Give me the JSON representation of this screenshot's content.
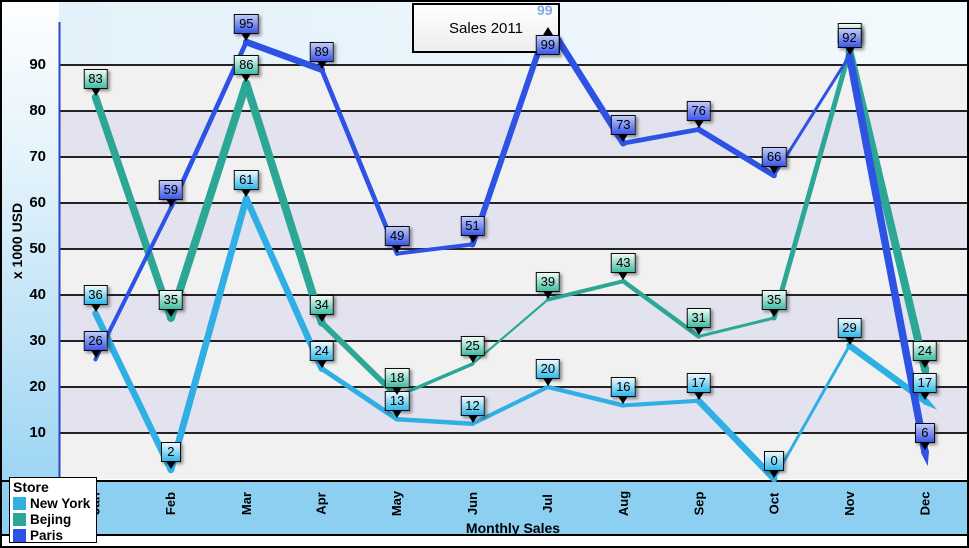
{
  "chart_data": {
    "type": "line",
    "title": "Sales 2011",
    "xlabel": "Monthly Sales",
    "ylabel": "x 1000 USD",
    "ylim": [
      0,
      103
    ],
    "grid": "horizontal-bands",
    "y_ticks": [
      "90",
      "80",
      "70",
      "60",
      "50",
      "40",
      "30",
      "20",
      "10"
    ],
    "categories": [
      "Jan",
      "Feb",
      "Mar",
      "Apr",
      "May",
      "Jun",
      "Jul",
      "Aug",
      "Sep",
      "Oct",
      "Nov",
      "Dec"
    ],
    "legend": {
      "title": "Store",
      "position": "bottom-left"
    },
    "series": [
      {
        "name": "New York",
        "color": "#2fafe4",
        "values": [
          36,
          2,
          61,
          24,
          13,
          12,
          20,
          16,
          17,
          0,
          29,
          17
        ],
        "segment_widths": [
          6.5,
          6.8,
          6.5,
          5,
          4.5,
          4,
          4.5,
          4,
          6.5,
          3,
          6.5
        ]
      },
      {
        "name": "Bejing",
        "color": "#2ca795",
        "values": [
          83,
          35,
          86,
          34,
          18,
          25,
          39,
          43,
          31,
          35,
          93,
          24
        ],
        "hidden_label_indices": [
          10
        ],
        "segment_widths": [
          7.5,
          8,
          8,
          5.7,
          3.5,
          2.2,
          4,
          4.5,
          3,
          5,
          8
        ]
      },
      {
        "name": "Paris",
        "color": "#2e52e4",
        "values": [
          26,
          59,
          95,
          89,
          49,
          51,
          99,
          73,
          76,
          66,
          92,
          6
        ],
        "label_below_indices": [
          6
        ],
        "segment_widths": [
          4,
          4.7,
          6.7,
          4.7,
          4,
          6,
          6.7,
          4.7,
          5.7,
          3,
          7.5
        ]
      }
    ],
    "annotations": [
      {
        "text": "99",
        "series": "Paris",
        "category": "Jul"
      }
    ]
  }
}
